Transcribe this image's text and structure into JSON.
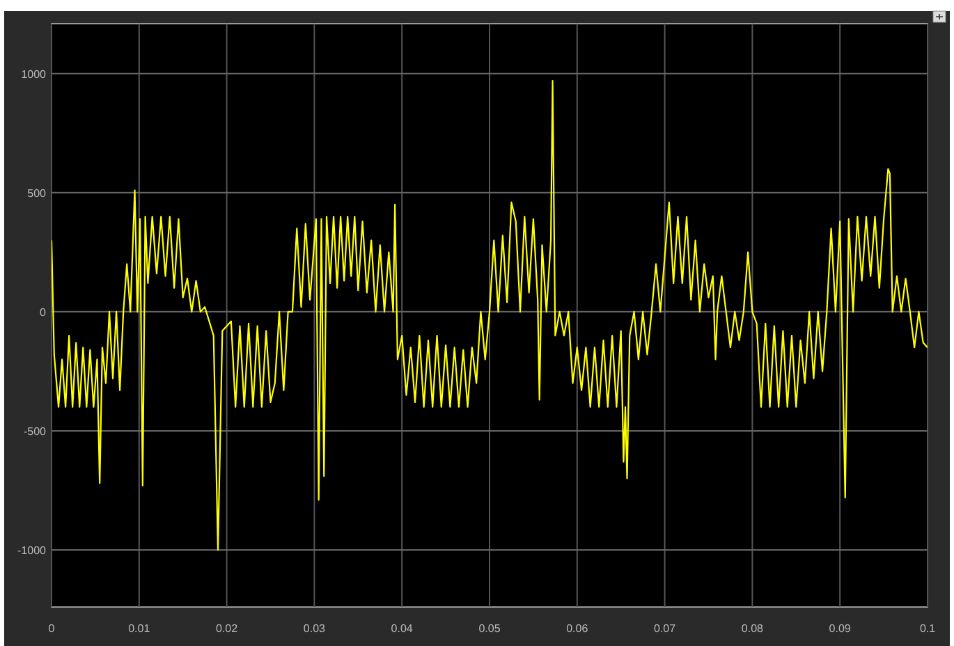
{
  "chart_data": {
    "type": "line",
    "color": "#ffff00",
    "grid": true,
    "xlim": [
      0,
      0.1
    ],
    "ylim": [
      -1240,
      1210
    ],
    "xticks": [
      0,
      0.01,
      0.02,
      0.03,
      0.04,
      0.05,
      0.06,
      0.07,
      0.08,
      0.09,
      0.1
    ],
    "yticks": [
      -1000,
      -500,
      0,
      500,
      1000
    ],
    "x": [
      0,
      0.0003,
      0.0008,
      0.0012,
      0.0016,
      0.002,
      0.0024,
      0.0028,
      0.0032,
      0.0036,
      0.004,
      0.0044,
      0.0048,
      0.0052,
      0.0055,
      0.0058,
      0.0062,
      0.0066,
      0.007,
      0.0074,
      0.0078,
      0.0082,
      0.0086,
      0.009,
      0.0095,
      0.0098,
      0.0101,
      0.0104,
      0.0107,
      0.011,
      0.0115,
      0.012,
      0.0125,
      0.013,
      0.0135,
      0.014,
      0.0145,
      0.015,
      0.0155,
      0.016,
      0.0165,
      0.017,
      0.0175,
      0.0185,
      0.019,
      0.0195,
      0.0205,
      0.021,
      0.0215,
      0.022,
      0.0225,
      0.023,
      0.0235,
      0.024,
      0.0245,
      0.025,
      0.0255,
      0.026,
      0.0265,
      0.027,
      0.0275,
      0.028,
      0.0285,
      0.029,
      0.0295,
      0.0302,
      0.0305,
      0.0308,
      0.0311,
      0.0314,
      0.0318,
      0.0322,
      0.0326,
      0.033,
      0.0334,
      0.0338,
      0.0342,
      0.0346,
      0.035,
      0.0355,
      0.036,
      0.0365,
      0.037,
      0.0375,
      0.038,
      0.0385,
      0.039,
      0.0392,
      0.0395,
      0.04,
      0.0405,
      0.041,
      0.0415,
      0.042,
      0.0425,
      0.043,
      0.0435,
      0.044,
      0.0445,
      0.045,
      0.0455,
      0.046,
      0.0465,
      0.047,
      0.0475,
      0.048,
      0.0485,
      0.049,
      0.0495,
      0.05,
      0.0505,
      0.051,
      0.0515,
      0.052,
      0.0525,
      0.053,
      0.0535,
      0.054,
      0.0545,
      0.055,
      0.0555,
      0.0557,
      0.056,
      0.0565,
      0.057,
      0.0572,
      0.0575,
      0.058,
      0.0585,
      0.059,
      0.0595,
      0.06,
      0.0605,
      0.061,
      0.0615,
      0.062,
      0.0625,
      0.063,
      0.0635,
      0.064,
      0.0645,
      0.065,
      0.0653,
      0.0655,
      0.0657,
      0.066,
      0.0665,
      0.067,
      0.0675,
      0.068,
      0.0685,
      0.069,
      0.0695,
      0.07,
      0.0705,
      0.071,
      0.0715,
      0.072,
      0.0725,
      0.073,
      0.0735,
      0.074,
      0.0745,
      0.075,
      0.0755,
      0.0758,
      0.076,
      0.0765,
      0.077,
      0.0775,
      0.078,
      0.0785,
      0.079,
      0.0795,
      0.08,
      0.0805,
      0.081,
      0.0815,
      0.082,
      0.0825,
      0.083,
      0.0835,
      0.084,
      0.0845,
      0.085,
      0.0855,
      0.086,
      0.0865,
      0.087,
      0.0875,
      0.088,
      0.0885,
      0.089,
      0.0895,
      0.09,
      0.0906,
      0.091,
      0.0915,
      0.092,
      0.0925,
      0.093,
      0.0935,
      0.094,
      0.0945,
      0.095,
      0.0955,
      0.0957,
      0.096,
      0.0965,
      0.097,
      0.0975,
      0.098,
      0.0985,
      0.099,
      0.0995,
      0.1
    ],
    "values": [
      300,
      -180,
      -400,
      -200,
      -400,
      -100,
      -400,
      -130,
      -400,
      -150,
      -400,
      -160,
      -400,
      -200,
      -720,
      -150,
      -300,
      0,
      -280,
      0,
      -330,
      0,
      200,
      0,
      510,
      0,
      390,
      -730,
      400,
      120,
      400,
      160,
      400,
      150,
      400,
      100,
      390,
      60,
      140,
      0,
      130,
      0,
      20,
      -100,
      -1000,
      -80,
      -40,
      -400,
      -60,
      -400,
      -50,
      -400,
      -60,
      -400,
      -80,
      -380,
      -300,
      0,
      -330,
      0,
      0,
      350,
      20,
      370,
      50,
      390,
      -790,
      390,
      -690,
      400,
      120,
      400,
      100,
      400,
      130,
      400,
      150,
      400,
      90,
      380,
      80,
      300,
      0,
      280,
      0,
      250,
      0,
      450,
      -200,
      -100,
      -350,
      -150,
      -380,
      -100,
      -400,
      -120,
      -400,
      -100,
      -400,
      -140,
      -400,
      -150,
      -400,
      -160,
      -400,
      -150,
      -300,
      0,
      -200,
      0,
      300,
      0,
      320,
      40,
      460,
      380,
      0,
      400,
      80,
      390,
      50,
      -370,
      280,
      0,
      300,
      970,
      -100,
      0,
      -100,
      0,
      -300,
      -150,
      -330,
      -150,
      -400,
      -150,
      -400,
      -120,
      -400,
      -100,
      -400,
      -80,
      -630,
      -400,
      -700,
      -100,
      0,
      -200,
      0,
      -180,
      0,
      200,
      0,
      230,
      460,
      120,
      400,
      120,
      400,
      50,
      300,
      0,
      200,
      60,
      150,
      -200,
      0,
      150,
      0,
      -150,
      0,
      -120,
      0,
      250,
      0,
      -50,
      -400,
      -50,
      -400,
      -60,
      -400,
      -80,
      -400,
      -100,
      -400,
      -120,
      -300,
      0,
      -280,
      0,
      -250,
      0,
      350,
      0,
      380,
      -780,
      390,
      0,
      400,
      130,
      400,
      150,
      400,
      100,
      390,
      600,
      580,
      0,
      150,
      0,
      140,
      0,
      -150,
      0,
      -130,
      -150
    ]
  }
}
